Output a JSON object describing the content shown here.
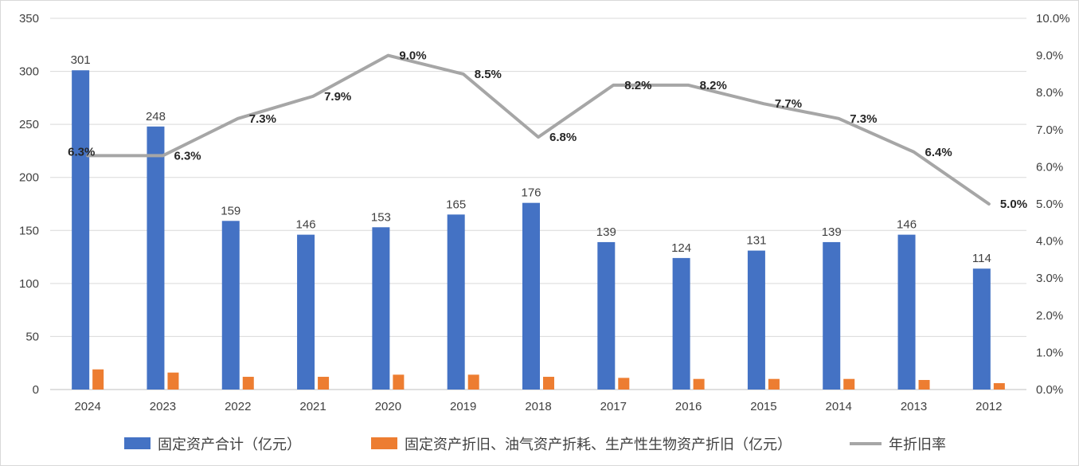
{
  "chart_data": {
    "type": "combo",
    "title": "",
    "categories": [
      "2024",
      "2023",
      "2022",
      "2021",
      "2020",
      "2019",
      "2018",
      "2017",
      "2016",
      "2015",
      "2014",
      "2013",
      "2012"
    ],
    "series": [
      {
        "name": "固定资产合计（亿元）",
        "type": "bar",
        "color": "#4472C4",
        "axis": "left",
        "values": [
          301,
          248,
          159,
          146,
          153,
          165,
          176,
          139,
          124,
          131,
          139,
          146,
          114
        ],
        "labels_visible": true
      },
      {
        "name": "固定资产折旧、油气资产折耗、生产性生物资产折旧（亿元）",
        "type": "bar",
        "color": "#ED7D31",
        "axis": "left",
        "values": [
          19,
          16,
          12,
          12,
          14,
          14,
          12,
          11,
          10,
          10,
          10,
          9,
          6
        ],
        "labels_visible": false
      },
      {
        "name": "年折旧率",
        "type": "line",
        "color": "#A6A6A6",
        "axis": "right",
        "values": [
          6.3,
          6.3,
          7.3,
          7.9,
          9.0,
          8.5,
          6.8,
          8.2,
          8.2,
          7.7,
          7.3,
          6.4,
          5.0
        ],
        "labels": [
          "6.3%",
          "6.3%",
          "7.3%",
          "7.9%",
          "9.0%",
          "8.5%",
          "6.8%",
          "8.2%",
          "8.2%",
          "7.7%",
          "7.3%",
          "6.4%",
          "5.0%"
        ],
        "labels_visible": true
      }
    ],
    "axes": {
      "left": {
        "min": 0,
        "max": 350,
        "step": 50,
        "tick_labels": [
          "0",
          "50",
          "100",
          "150",
          "200",
          "250",
          "300",
          "350"
        ]
      },
      "right": {
        "min": 0,
        "max": 10,
        "step": 1,
        "tick_labels": [
          "0.0%",
          "1.0%",
          "2.0%",
          "3.0%",
          "4.0%",
          "5.0%",
          "6.0%",
          "7.0%",
          "8.0%",
          "9.0%",
          "10.0%"
        ]
      }
    },
    "grid": true,
    "grid_color": "#D9D9D9",
    "axis_line_color": "#BFBFBF",
    "legend_position": "bottom"
  }
}
